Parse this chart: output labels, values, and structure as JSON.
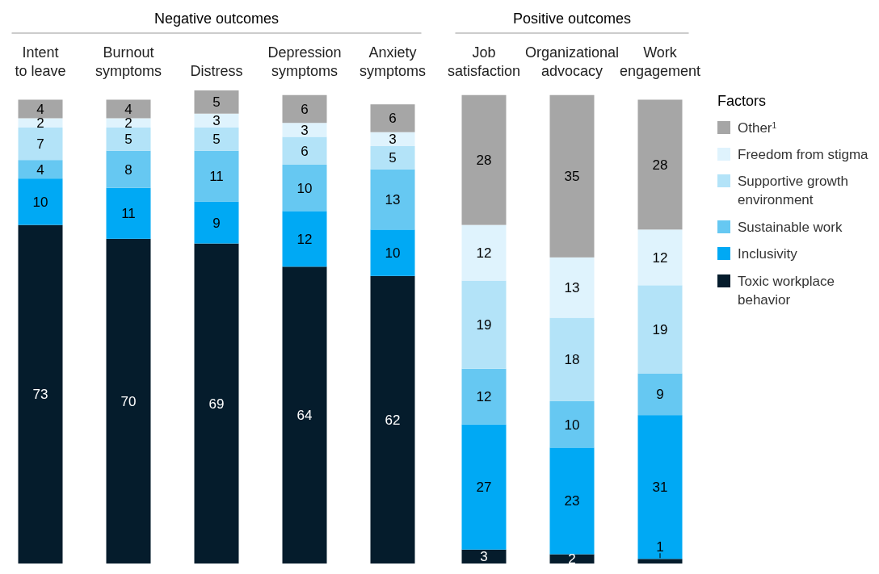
{
  "chart_data": {
    "type": "bar",
    "stacked": true,
    "data_labels": true,
    "legend": "right",
    "legend_title": "Factors",
    "categories": [
      "Intent to leave",
      "Burnout symptoms",
      "Distress",
      "Depression symptoms",
      "Anxiety symptoms",
      "Job satisfaction",
      "Organizational advocacy",
      "Work engagement"
    ],
    "annotations": [
      "Negative outcomes",
      "Positive outcomes"
    ],
    "series": [
      {
        "name": "Toxic workplace behavior",
        "color": "#051c2c",
        "values": [
          73,
          70,
          69,
          64,
          62,
          3,
          2,
          1
        ]
      },
      {
        "name": "Inclusivity",
        "color": "#00a9f4",
        "values": [
          10,
          11,
          9,
          12,
          10,
          27,
          23,
          31
        ]
      },
      {
        "name": "Sustainable work",
        "color": "#66c8f2",
        "values": [
          4,
          8,
          11,
          10,
          13,
          12,
          10,
          9
        ]
      },
      {
        "name": "Supportive growth environment",
        "color": "#b3e3f8",
        "values": [
          7,
          5,
          5,
          6,
          5,
          19,
          18,
          19
        ]
      },
      {
        "name": "Freedom from stigma",
        "color": "#dff3fd",
        "values": [
          2,
          2,
          3,
          3,
          3,
          12,
          13,
          12
        ]
      },
      {
        "name": "Other$^{1}$",
        "color": "#a6a6a6",
        "values": [
          4,
          4,
          5,
          6,
          6,
          28,
          35,
          28
        ]
      }
    ]
  }
}
